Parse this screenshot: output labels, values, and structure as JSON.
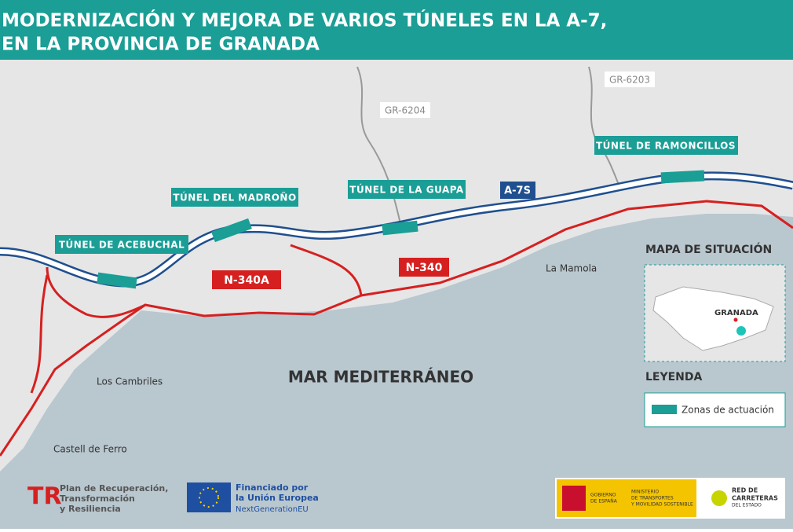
{
  "header": {
    "title_lines": [
      "MODERNIZACIÓN Y MEJORA DE VARIOS TÚNELES EN LA A-7,",
      "EN LA PROVINCIA DE GRANADA"
    ]
  },
  "roads": {
    "gr1": "GR-6204",
    "gr2": "GR-6203",
    "highway": "A-7S",
    "n340a": "N-340A",
    "n340": "N-340"
  },
  "tunnels": [
    "TÚNEL DE ACEBUCHAL",
    "TÚNEL DEL MADROÑO",
    "TÚNEL DE LA GUAPA",
    "TÚNEL DE RAMONCILLOS"
  ],
  "places": {
    "mamola": "La Mamola",
    "cambriles": "Los Cambriles",
    "castell": "Castell de Ferro",
    "sea": "MAR MEDITERRÁNEO"
  },
  "inset": {
    "title": "MAPA DE SITUACIÓN",
    "city": "GRANADA"
  },
  "legend": {
    "title": "LEYENDA",
    "items": [
      "Zonas de actuación"
    ]
  },
  "logos": {
    "plan": [
      "Plan de Recuperación,",
      "Transformación",
      "y Resiliencia"
    ],
    "eu": [
      "Financiado por",
      "la Unión Europea",
      "NextGenerationEU"
    ],
    "gov": [
      "GOBIERNO",
      "DE ESPAÑA"
    ],
    "ministry": [
      "MINISTERIO",
      "DE TRANSPORTES",
      "Y MOVILIDAD SOSTENIBLE"
    ],
    "red": [
      "RED DE",
      "CARRETERAS",
      "DEL ESTADO"
    ]
  }
}
